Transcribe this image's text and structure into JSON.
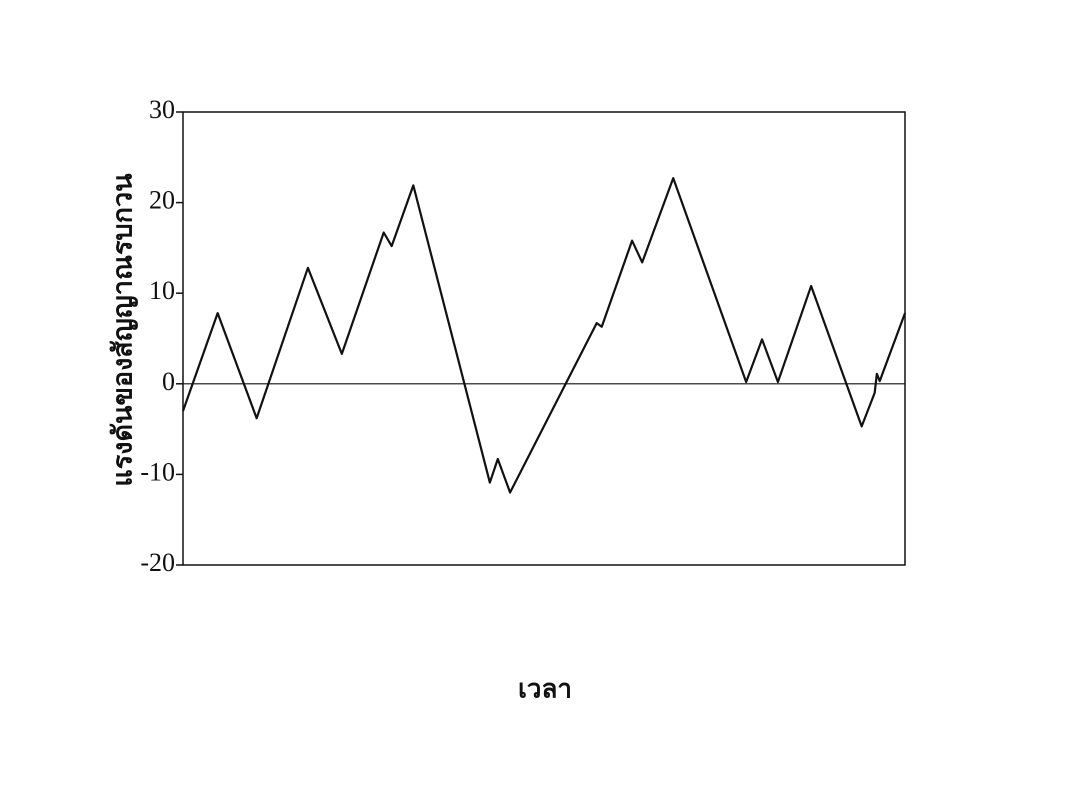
{
  "chart_data": {
    "type": "line",
    "x_label": "เวลา",
    "y_label": "แรงดันของสัญญาณรบกวน",
    "x": [
      0,
      4.8,
      10.2,
      17.3,
      22.0,
      27.8,
      28.9,
      31.9,
      42.5,
      43.6,
      45.3,
      57.3,
      58.0,
      62.2,
      63.6,
      67.9,
      78.0,
      80.2,
      82.4,
      87.0,
      94.0,
      95.8,
      96.1,
      96.5,
      100
    ],
    "series": [
      {
        "color": "#111111",
        "values": [
          -3,
          7.8,
          -3.8,
          12.8,
          3.3,
          16.7,
          15.2,
          21.9,
          -10.9,
          -8.3,
          -12,
          6.7,
          6.3,
          15.8,
          13.4,
          22.7,
          0.2,
          4.9,
          0.2,
          10.8,
          -4.7,
          -1,
          1.1,
          0.3,
          7.8
        ]
      }
    ],
    "xlim": [
      0,
      100
    ],
    "ylim": [
      -20,
      30
    ],
    "yticks": [
      -20,
      -10,
      0,
      10,
      20,
      30
    ],
    "zero_line": true
  }
}
